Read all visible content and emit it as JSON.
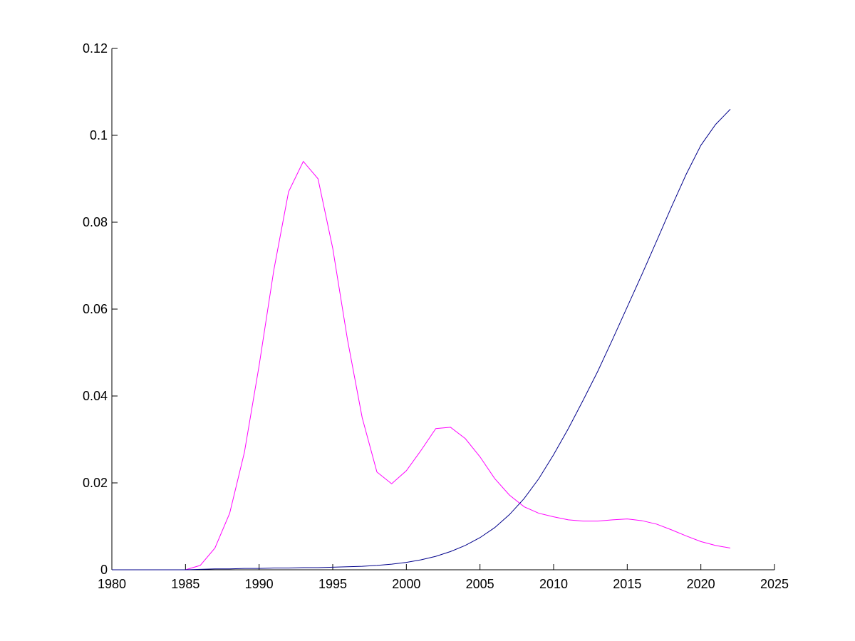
{
  "chart_data": {
    "type": "line",
    "x": [
      1980,
      1981,
      1982,
      1983,
      1984,
      1985,
      1986,
      1987,
      1988,
      1989,
      1990,
      1991,
      1992,
      1993,
      1994,
      1995,
      1996,
      1997,
      1998,
      1999,
      2000,
      2001,
      2002,
      2003,
      2004,
      2005,
      2006,
      2007,
      2008,
      2009,
      2010,
      2011,
      2012,
      2013,
      2014,
      2015,
      2016,
      2017,
      2018,
      2019,
      2020,
      2021,
      2022
    ],
    "series": [
      {
        "color": "#ff00ff",
        "values": [
          0,
          0,
          0,
          0,
          0,
          0,
          0.001,
          0.005,
          0.013,
          0.027,
          0.047,
          0.069,
          0.087,
          0.094,
          0.09,
          0.074,
          0.053,
          0.035,
          0.0225,
          0.0198,
          0.0228,
          0.0275,
          0.0325,
          0.0328,
          0.0302,
          0.026,
          0.021,
          0.0172,
          0.0145,
          0.013,
          0.0122,
          0.0115,
          0.0112,
          0.0112,
          0.0115,
          0.0117,
          0.0113,
          0.0105,
          0.0092,
          0.0078,
          0.0065,
          0.0056,
          0.005
        ]
      },
      {
        "color": "#00008b",
        "values": [
          0,
          0,
          0,
          0,
          0,
          0,
          0.0001,
          0.0002,
          0.0002,
          0.0003,
          0.0003,
          0.0004,
          0.0004,
          0.0005,
          0.0005,
          0.0006,
          0.0007,
          0.0008,
          0.001,
          0.0013,
          0.0017,
          0.0023,
          0.0031,
          0.0042,
          0.0056,
          0.0074,
          0.0097,
          0.0127,
          0.0164,
          0.021,
          0.0265,
          0.0325,
          0.039,
          0.0457,
          0.053,
          0.0605,
          0.068,
          0.0757,
          0.0835,
          0.091,
          0.0977,
          0.1025,
          0.106
        ]
      }
    ],
    "xlim": [
      1980,
      2025
    ],
    "xticks": [
      1980,
      1985,
      1990,
      1995,
      2000,
      2005,
      2010,
      2015,
      2020,
      2025
    ],
    "ylim": [
      0,
      0.12
    ],
    "yticks": [
      0,
      0.02,
      0.04,
      0.06,
      0.08,
      0.1,
      0.12
    ],
    "grid": false
  }
}
